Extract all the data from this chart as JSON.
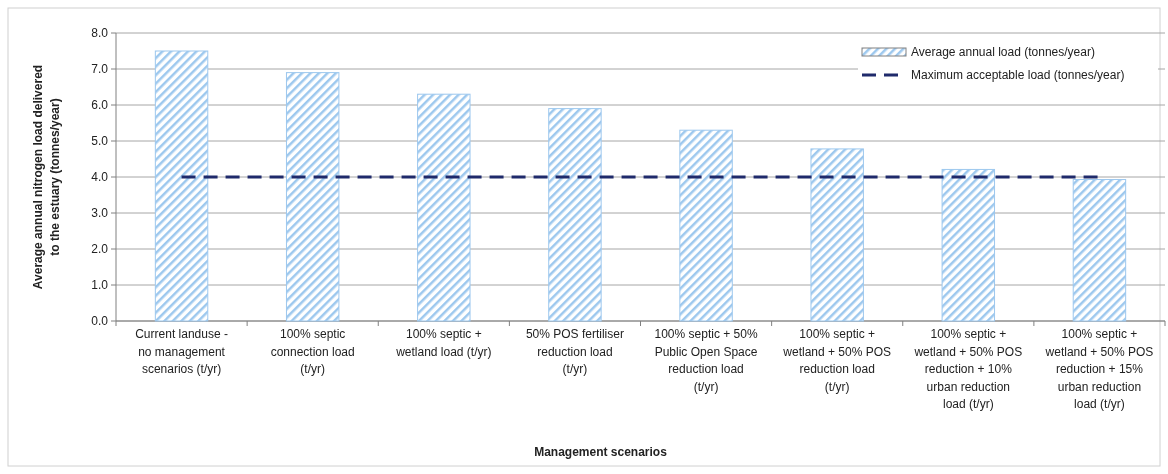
{
  "chart_data": {
    "type": "bar",
    "xlabel": "Management scenarios",
    "ylabel": "Average annual nitrogen load delivered to the estuary (tonnes/year)",
    "categories": [
      "Current landuse - no management scenarios (t/yr)",
      "100% septic connection load (t/yr)",
      "100% septic + wetland load (t/yr)",
      "50% POS fertiliser reduction load (t/yr)",
      "100% septic + 50% Public Open Space reduction load (t/yr)",
      "100% septic + wetland + 50% POS reduction load (t/yr)",
      "100% septic + wetland + 50% POS reduction + 10% urban reduction load (t/yr)",
      "100% septic + wetland + 50% POS reduction + 15% urban reduction load (t/yr)"
    ],
    "series": [
      {
        "name": "Average annual load (tonnes/year)",
        "color": "#9dc8ee",
        "values": [
          7.5,
          6.9,
          6.3,
          5.9,
          5.3,
          4.78,
          4.21,
          3.93
        ]
      },
      {
        "name": "Maximum acceptable load (tonnes/year)",
        "type": "line",
        "color": "#1f2a6b",
        "line_style": "dashed",
        "values": [
          4,
          4,
          4,
          4,
          4,
          4,
          4,
          4
        ]
      }
    ],
    "ylim": [
      0,
      8
    ],
    "yticks": [
      {
        "value": 0,
        "label": "0.0"
      },
      {
        "value": 1,
        "label": "1.0"
      },
      {
        "value": 2,
        "label": "2.0"
      },
      {
        "value": 3,
        "label": "3.0"
      },
      {
        "value": 4,
        "label": "4.0"
      },
      {
        "value": 5,
        "label": "5.0"
      },
      {
        "value": 6,
        "label": "6.0"
      },
      {
        "value": 7,
        "label": "7.0"
      },
      {
        "value": 8,
        "label": "8.0"
      }
    ],
    "grid": "y",
    "legend": "top right",
    "marker": "none"
  }
}
